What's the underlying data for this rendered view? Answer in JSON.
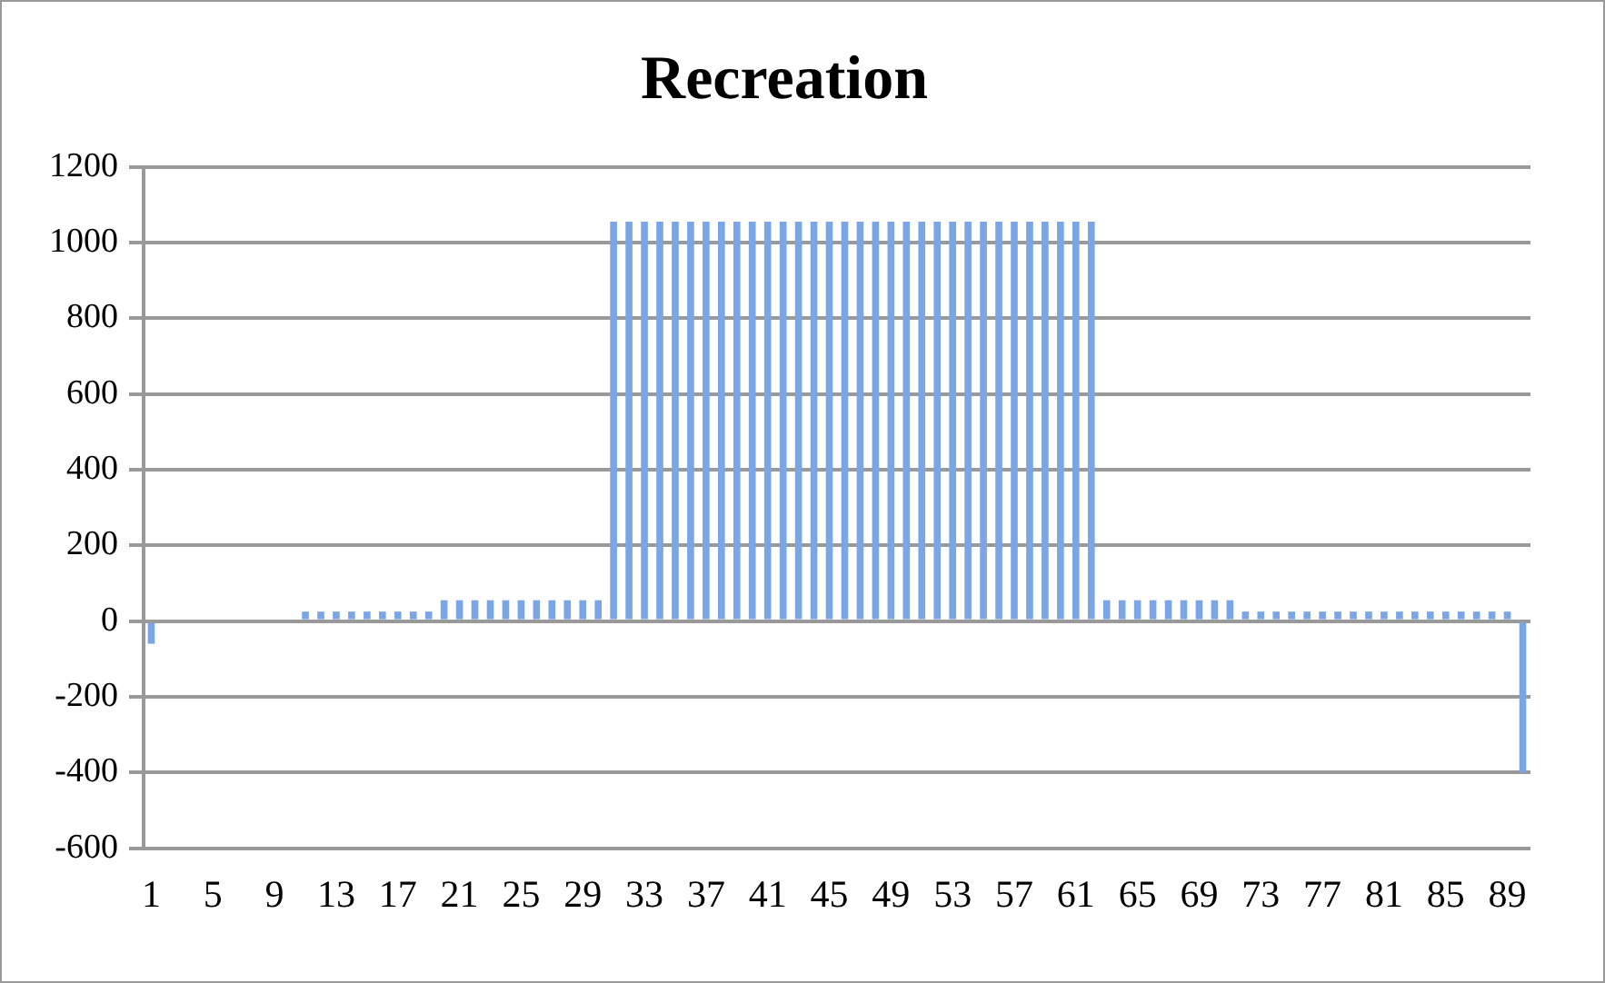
{
  "chart_data": {
    "type": "bar",
    "title": "Recreation",
    "categories": [
      "1",
      null,
      null,
      null,
      "5",
      null,
      null,
      null,
      "9",
      null,
      null,
      null,
      "13",
      null,
      null,
      null,
      "17",
      null,
      null,
      null,
      "21",
      null,
      null,
      null,
      "25",
      null,
      null,
      null,
      "29",
      null,
      null,
      null,
      "33",
      null,
      null,
      null,
      "37",
      null,
      null,
      null,
      "41",
      null,
      null,
      null,
      "45",
      null,
      null,
      null,
      "49",
      null,
      null,
      null,
      "53",
      null,
      null,
      null,
      "57",
      null,
      null,
      null,
      "61",
      null,
      null,
      null,
      "65",
      null,
      null,
      null,
      "69",
      null,
      null,
      null,
      "73",
      null,
      null,
      null,
      "77",
      null,
      null,
      null,
      "81",
      null,
      null,
      null,
      "85",
      null,
      null,
      null,
      "89",
      null
    ],
    "values": [
      -60,
      0,
      0,
      0,
      0,
      0,
      0,
      0,
      0,
      0,
      25,
      25,
      25,
      25,
      25,
      25,
      25,
      25,
      25,
      55,
      55,
      55,
      55,
      55,
      55,
      55,
      55,
      55,
      55,
      55,
      1055,
      1055,
      1055,
      1055,
      1055,
      1055,
      1055,
      1055,
      1055,
      1055,
      1055,
      1055,
      1055,
      1055,
      1055,
      1055,
      1055,
      1055,
      1055,
      1055,
      1055,
      1055,
      1055,
      1055,
      1055,
      1055,
      1055,
      1055,
      1055,
      1055,
      1055,
      1055,
      55,
      55,
      55,
      55,
      55,
      55,
      55,
      55,
      55,
      25,
      25,
      25,
      25,
      25,
      25,
      25,
      25,
      25,
      25,
      25,
      25,
      25,
      25,
      25,
      25,
      25,
      25,
      -400
    ],
    "color": "#7aa6e6",
    "ylim": [
      -600,
      1200
    ],
    "yticks": [
      -600,
      -400,
      -200,
      0,
      200,
      400,
      600,
      800,
      1000,
      1200
    ],
    "grid": "y",
    "legend": false
  }
}
